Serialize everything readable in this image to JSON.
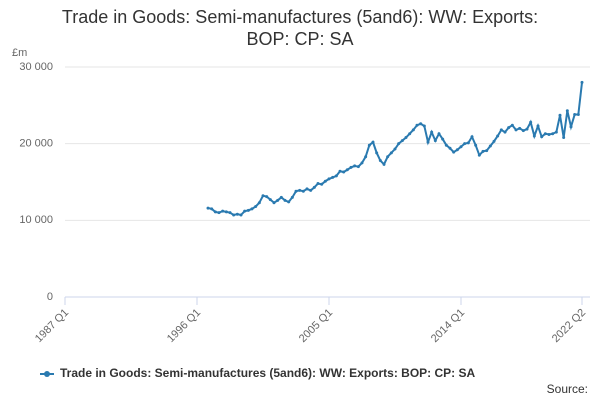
{
  "chart_data": {
    "type": "line",
    "title": "Trade in Goods: Semi-manufactures (5and6): WW: Exports: BOP: CP: SA",
    "y_unit": "£m",
    "source": "Source:",
    "categories": [
      "1987 Q1",
      null,
      null,
      null,
      null,
      null,
      null,
      null,
      null,
      null,
      null,
      null,
      null,
      null,
      null,
      null,
      null,
      null,
      null,
      null,
      null,
      null,
      null,
      null,
      null,
      null,
      null,
      null,
      null,
      null,
      null,
      null,
      null,
      null,
      null,
      null,
      "1996 Q1",
      null,
      null,
      null,
      null,
      null,
      null,
      null,
      null,
      null,
      null,
      null,
      null,
      null,
      null,
      null,
      null,
      null,
      null,
      null,
      null,
      null,
      null,
      null,
      null,
      null,
      null,
      null,
      null,
      null,
      null,
      null,
      null,
      null,
      null,
      null,
      "2005 Q1",
      null,
      null,
      null,
      null,
      null,
      null,
      null,
      null,
      null,
      null,
      null,
      null,
      null,
      null,
      null,
      null,
      null,
      null,
      null,
      null,
      null,
      null,
      null,
      null,
      null,
      null,
      null,
      null,
      null,
      null,
      null,
      null,
      null,
      null,
      null,
      "2014 Q1",
      null,
      null,
      null,
      null,
      null,
      null,
      null,
      null,
      null,
      null,
      null,
      null,
      null,
      null,
      null,
      null,
      null,
      null,
      null,
      null,
      null,
      null,
      null,
      null,
      null,
      null,
      null,
      null,
      null,
      null,
      null,
      null,
      "2022 Q2"
    ],
    "series": [
      {
        "name": "Trade in Goods: Semi-manufactures (5and6): WW: Exports: BOP: CP: SA",
        "color": "#2a7ab0",
        "values": [
          null,
          null,
          null,
          null,
          null,
          null,
          null,
          null,
          null,
          null,
          null,
          null,
          null,
          null,
          null,
          null,
          null,
          null,
          null,
          null,
          null,
          null,
          null,
          null,
          null,
          null,
          null,
          null,
          null,
          null,
          null,
          null,
          null,
          null,
          null,
          null,
          null,
          null,
          null,
          11600,
          11500,
          11100,
          11000,
          11200,
          11100,
          11000,
          10700,
          10800,
          10700,
          11200,
          11300,
          11500,
          11800,
          12300,
          13200,
          13100,
          12700,
          12300,
          12600,
          13000,
          12600,
          12400,
          13000,
          13800,
          13900,
          13800,
          14100,
          13900,
          14300,
          14800,
          14700,
          15100,
          15400,
          15600,
          15800,
          16400,
          16300,
          16600,
          16900,
          17100,
          17000,
          17500,
          18300,
          19800,
          20200,
          18800,
          17800,
          17300,
          18300,
          18800,
          19300,
          20000,
          20400,
          20800,
          21300,
          21800,
          22400,
          22600,
          22300,
          20200,
          21500,
          20400,
          21300,
          20600,
          19800,
          19400,
          18900,
          19200,
          19600,
          20000,
          20100,
          20900,
          19800,
          18500,
          19000,
          19100,
          19700,
          20300,
          21000,
          21800,
          21500,
          22100,
          22400,
          21800,
          22000,
          21700,
          21900,
          22800,
          21000,
          22300,
          20900,
          21300,
          21200,
          21300,
          21500,
          23700,
          20800,
          24300,
          22200,
          23800,
          23800,
          28000
        ]
      }
    ],
    "ylim": [
      0,
      30000
    ],
    "yticks": [
      0,
      {
        "value": 10000,
        "label": "10 000"
      },
      {
        "value": 20000,
        "label": "20 000"
      },
      {
        "value": 30000,
        "label": "30 000"
      }
    ],
    "grid": true
  }
}
